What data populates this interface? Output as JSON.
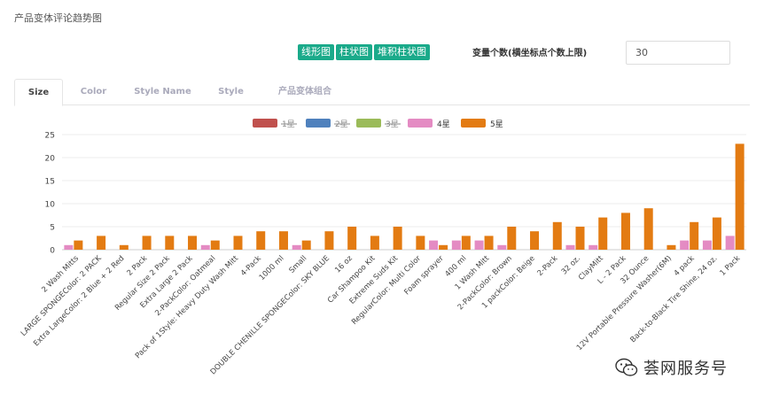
{
  "page": {
    "title": "产品变体评论趋势图"
  },
  "chart_type_buttons": [
    "线形图",
    "柱状图",
    "堆积柱状图"
  ],
  "var_count": {
    "label": "变量个数(横坐标点个数上限)",
    "value": "30"
  },
  "tabs": [
    {
      "label": "Size",
      "active": true
    },
    {
      "label": "Color",
      "active": false
    },
    {
      "label": "Style Name",
      "active": false
    },
    {
      "label": "Style",
      "active": false
    },
    {
      "label": "产品变体组合",
      "active": false
    }
  ],
  "watermark": {
    "text": "荟网服务号"
  },
  "colors": {
    "accent": "#1aaa8a",
    "s1": "#c0504d",
    "s2": "#4f81bd",
    "s3": "#9bbb59",
    "s4": "#e48bc3",
    "s5": "#e37b12"
  },
  "chart_data": {
    "type": "bar",
    "title": "",
    "xlabel": "",
    "ylabel": "",
    "ylim": [
      0,
      25
    ],
    "yticks": [
      0,
      5,
      10,
      15,
      20,
      25
    ],
    "grid": true,
    "legend_position": "top-center",
    "categories": [
      "2 Wash Mitts",
      "LARGE SPONGEColor: 2 PACK",
      "Extra LargeColor: 2 Blue + 2 Red",
      "2 Pack",
      "Regular Size 2 Pack",
      "Extra Large 2 Pack",
      "2-PackColor: Oatmeal",
      "Pack of 1Style: Heavy Duty Wash Mitt",
      "4-Pack",
      "1000 ml",
      "Small",
      "DOUBLE CHENILLE SPONGEColor: SKY BLUE",
      "16 oz",
      "Car Shampoo Kit",
      "Extreme Suds Kit",
      "RegularColor: Multi Color",
      "Foam sprayer",
      "400 ml",
      "1 Wash Mitt",
      "2-PackColor: Brown",
      "1 packColor: Beige",
      "2-Pack",
      "32 oz.",
      "ClayMitt",
      "L - 2 Pack",
      "32 Ounce",
      "12V Portable Pressure Washer(6M)",
      "4 pack",
      "Back-to-Black Tire Shine, 24 oz.",
      "1 Pack"
    ],
    "series": [
      {
        "name": "1星",
        "color": "#c0504d",
        "hidden": true,
        "values": [
          0,
          0,
          0,
          0,
          0,
          0,
          0,
          0,
          0,
          0,
          0,
          0,
          0,
          0,
          0,
          0,
          0,
          0,
          0,
          0,
          0,
          0,
          0,
          0,
          0,
          0,
          0,
          0,
          0,
          0
        ]
      },
      {
        "name": "2星",
        "color": "#4f81bd",
        "hidden": true,
        "values": [
          0,
          0,
          0,
          0,
          0,
          0,
          0,
          0,
          0,
          0,
          0,
          0,
          0,
          0,
          0,
          0,
          0,
          0,
          0,
          0,
          0,
          0,
          0,
          0,
          0,
          0,
          0,
          0,
          0,
          0
        ]
      },
      {
        "name": "3星",
        "color": "#9bbb59",
        "hidden": true,
        "values": [
          0,
          0,
          0,
          0,
          0,
          0,
          0,
          0,
          0,
          0,
          0,
          0,
          0,
          0,
          0,
          0,
          0,
          0,
          0,
          0,
          0,
          0,
          0,
          0,
          0,
          0,
          0,
          0,
          0,
          0
        ]
      },
      {
        "name": "4星",
        "color": "#e48bc3",
        "hidden": false,
        "values": [
          1,
          0,
          0,
          0,
          0,
          0,
          1,
          0,
          0,
          0,
          1,
          0,
          0,
          0,
          0,
          0,
          2,
          2,
          2,
          1,
          0,
          0,
          1,
          1,
          0,
          0,
          0,
          2,
          2,
          3
        ]
      },
      {
        "name": "5星",
        "color": "#e37b12",
        "hidden": false,
        "values": [
          2,
          3,
          1,
          3,
          3,
          3,
          2,
          3,
          4,
          4,
          2,
          4,
          5,
          3,
          5,
          3,
          1,
          3,
          3,
          5,
          4,
          6,
          5,
          7,
          8,
          9,
          1,
          6,
          7,
          23
        ]
      }
    ]
  }
}
